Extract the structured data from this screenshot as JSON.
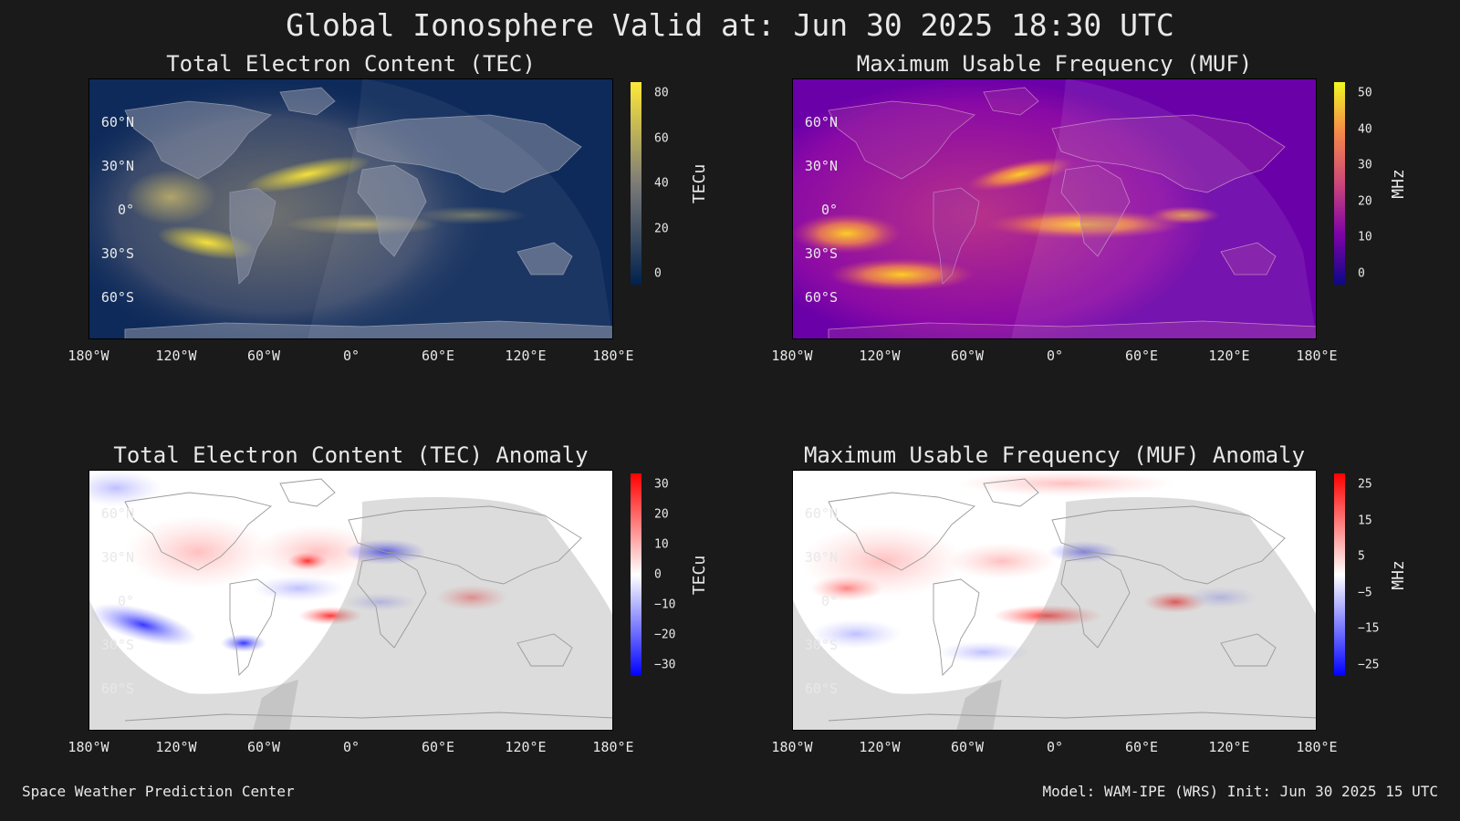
{
  "title": "Global Ionosphere Valid at: Jun 30 2025 18:30 UTC",
  "footer": {
    "left": "Space Weather Prediction Center",
    "right": "Model: WAM-IPE (WRS) Init: Jun 30 2025 15 UTC"
  },
  "axes": {
    "lat_labels": [
      "60°N",
      "30°N",
      "0°",
      "30°S",
      "60°S"
    ],
    "lon_labels": [
      "180°W",
      "120°W",
      "60°W",
      "0°",
      "60°E",
      "120°E",
      "180°E"
    ]
  },
  "panels": [
    {
      "id": "tec",
      "title": "Total Electron Content (TEC)",
      "unit": "TECu",
      "scale": "cividis",
      "ticks": [
        "80",
        "60",
        "40",
        "20",
        "0"
      ],
      "colors": {
        "low": "#00224e",
        "mid": "#7c7b78",
        "high": "#fee838"
      }
    },
    {
      "id": "muf",
      "title": "Maximum Usable Frequency (MUF)",
      "unit": "MHz",
      "scale": "plasma",
      "ticks": [
        "50",
        "40",
        "30",
        "20",
        "10",
        "0"
      ],
      "colors": {
        "low": "#0d0887",
        "mid": "#cc4778",
        "high": "#f0f921"
      }
    },
    {
      "id": "tec-anom",
      "title": "Total Electron Content (TEC) Anomaly",
      "unit": "TECu",
      "scale": "bwr",
      "ticks": [
        "30",
        "20",
        "10",
        "0",
        "−10",
        "−20",
        "−30"
      ],
      "colors": {
        "low": "#0000ff",
        "mid": "#ffffff",
        "high": "#ff0000"
      }
    },
    {
      "id": "muf-anom",
      "title": "Maximum Usable Frequency (MUF) Anomaly",
      "unit": "MHz",
      "scale": "bwr",
      "ticks": [
        "25",
        "15",
        "5",
        "−5",
        "−15",
        "−25"
      ],
      "colors": {
        "low": "#0000ff",
        "mid": "#ffffff",
        "high": "#ff0000"
      }
    }
  ]
}
